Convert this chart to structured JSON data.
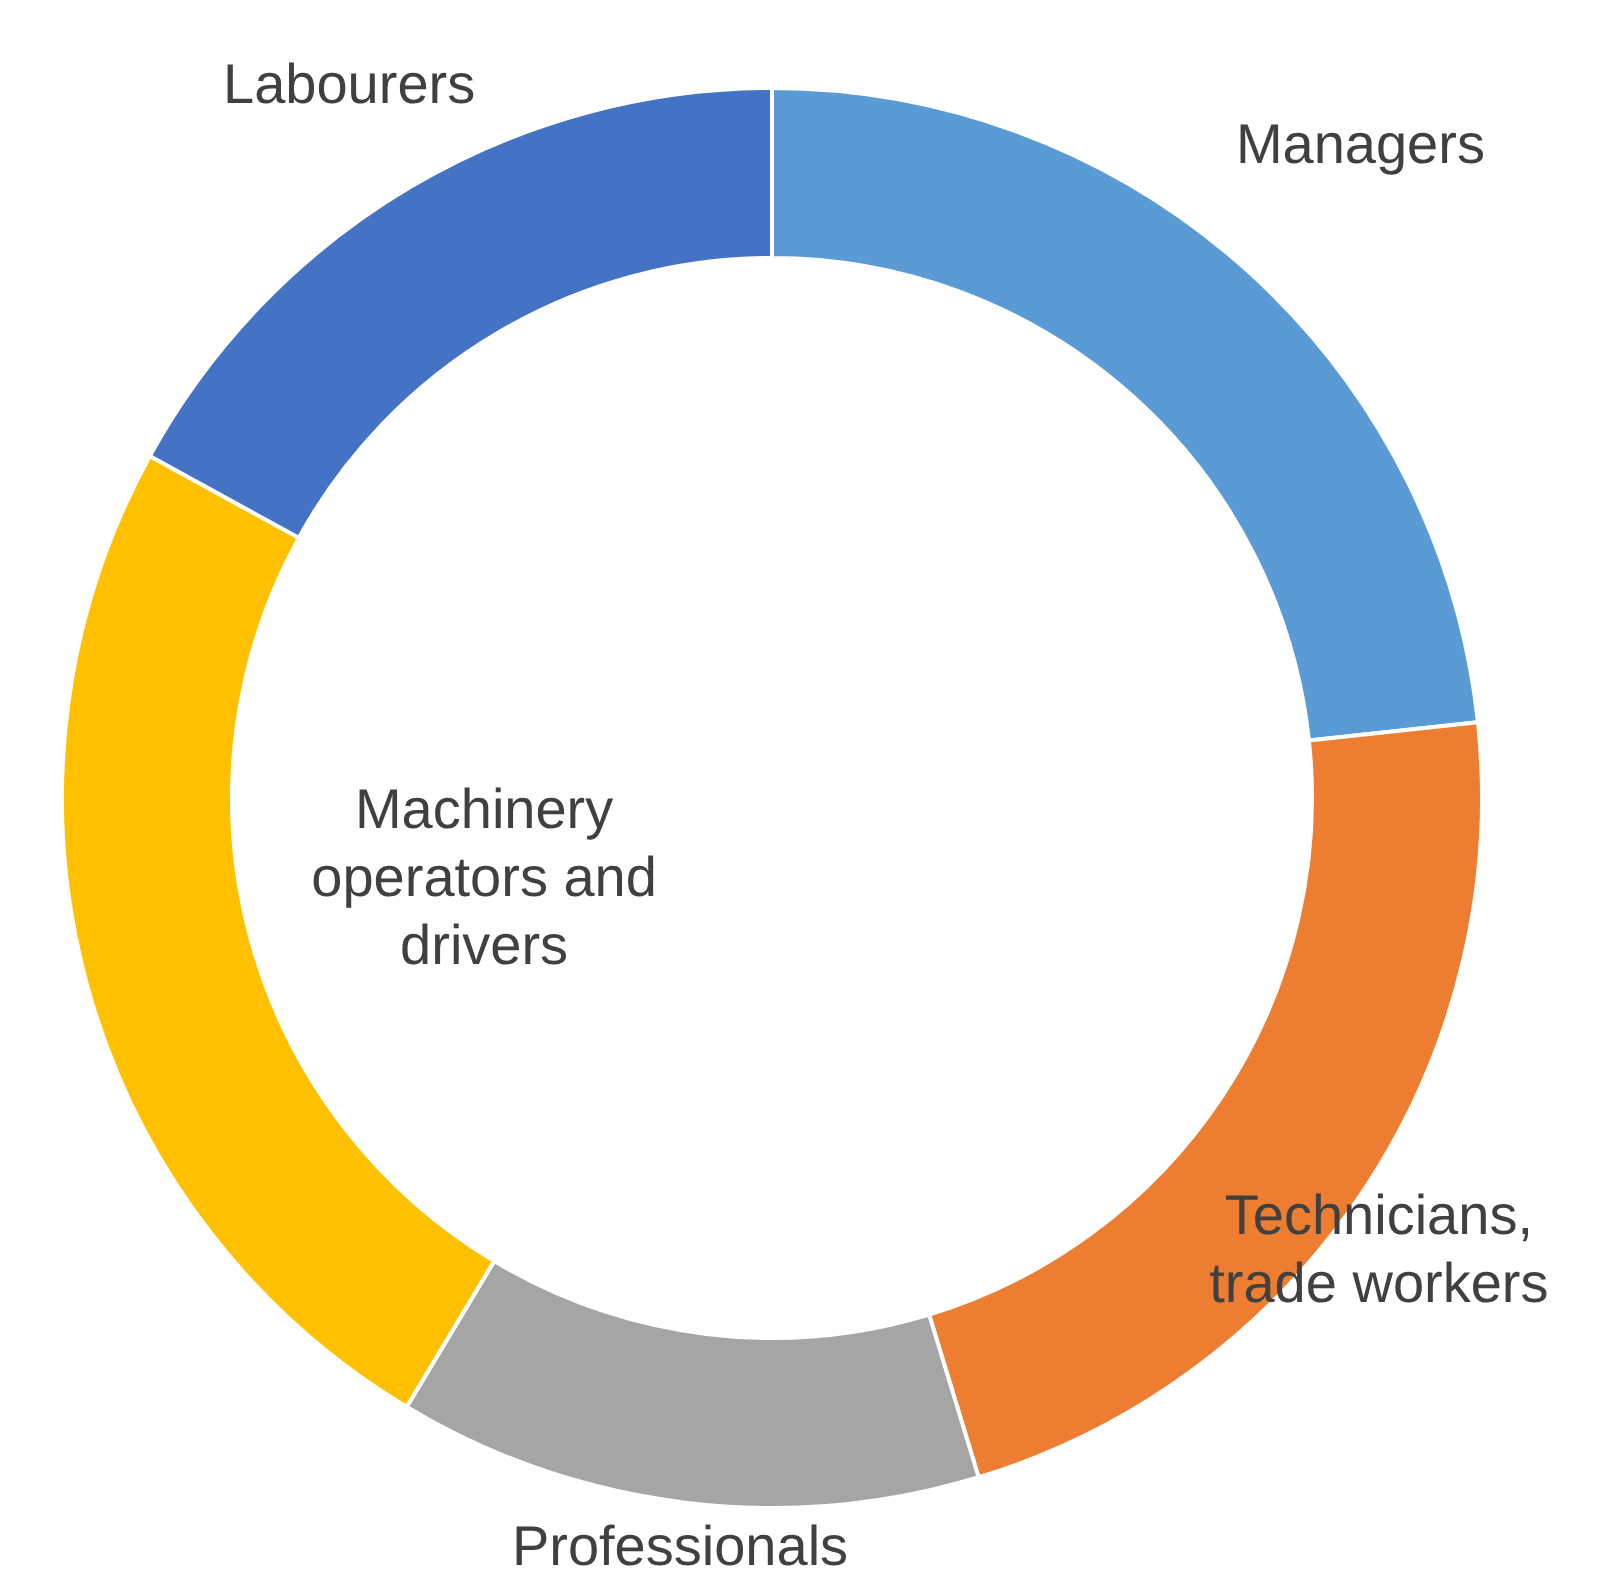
{
  "chart_data": {
    "type": "donut",
    "categories": [
      "Managers",
      "Technicians, trade workers",
      "Professionals",
      "Machinery operators and drivers",
      "Labourers"
    ],
    "values": [
      23.3,
      22.0,
      13.3,
      24.4,
      17.0
    ],
    "colors": [
      "#5b9bd5",
      "#ed7d31",
      "#a5a5a5",
      "#ffc000",
      "#4472c4"
    ]
  }
}
